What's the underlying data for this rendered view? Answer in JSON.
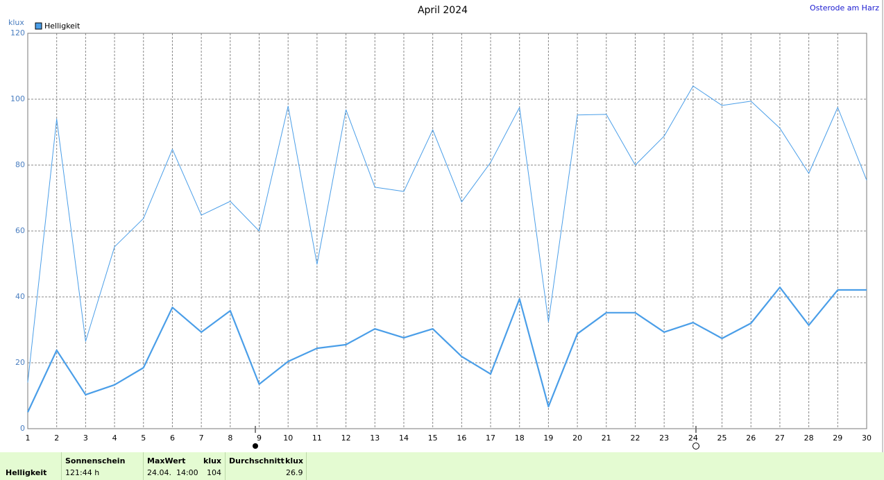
{
  "location": "Osterode am Harz",
  "chart_data": {
    "type": "line",
    "title": "April 2024",
    "ylabel": "klux",
    "x": [
      1,
      2,
      3,
      4,
      5,
      6,
      7,
      8,
      9,
      10,
      11,
      12,
      13,
      14,
      15,
      16,
      17,
      18,
      19,
      20,
      21,
      22,
      23,
      24,
      25,
      26,
      27,
      28,
      29,
      30
    ],
    "xlim": [
      1,
      30
    ],
    "xticks": [
      1,
      2,
      3,
      4,
      5,
      6,
      7,
      8,
      9,
      10,
      11,
      12,
      13,
      14,
      15,
      16,
      17,
      18,
      19,
      20,
      21,
      22,
      23,
      24,
      25,
      26,
      27,
      28,
      29,
      30
    ],
    "ylim": [
      0,
      120
    ],
    "yticks": [
      0,
      20,
      40,
      60,
      80,
      100,
      120
    ],
    "grid": true,
    "legend": "top-left",
    "series": [
      {
        "name": "Helligkeit",
        "color": "#4a9ee8",
        "width": 2.2,
        "values": [
          5,
          23.8,
          10.3,
          13.3,
          18.5,
          36.8,
          29.3,
          35.8,
          13.5,
          20.4,
          24.4,
          25.5,
          30.3,
          27.6,
          30.3,
          21.9,
          16.6,
          39.4,
          6.7,
          28.8,
          35.2,
          35.2,
          29.3,
          32.2,
          27.4,
          32,
          42.9,
          31.4,
          42.1,
          42.1
        ]
      },
      {
        "color": "#4a9ee8",
        "width": 1,
        "values": [
          14,
          94,
          26.5,
          55.2,
          63.8,
          84.8,
          64.8,
          69,
          60,
          97.9,
          49.9,
          96.8,
          73.3,
          72,
          90.7,
          68.8,
          80.8,
          97.5,
          32.4,
          95.2,
          95.4,
          80,
          88.8,
          104,
          98.1,
          99.4,
          91.2,
          77.5,
          97.5,
          75.4
        ]
      }
    ]
  },
  "summary": {
    "row_label": "Helligkeit",
    "sunshine": {
      "header": "Sonnenschein",
      "value": "121:44 h"
    },
    "max": {
      "header": "MaxWert",
      "unit": "klux",
      "when": "24.04.  14:00",
      "value": "104"
    },
    "avg": {
      "header": "Durchschnitt",
      "unit": "klux",
      "value": "26.9"
    }
  }
}
